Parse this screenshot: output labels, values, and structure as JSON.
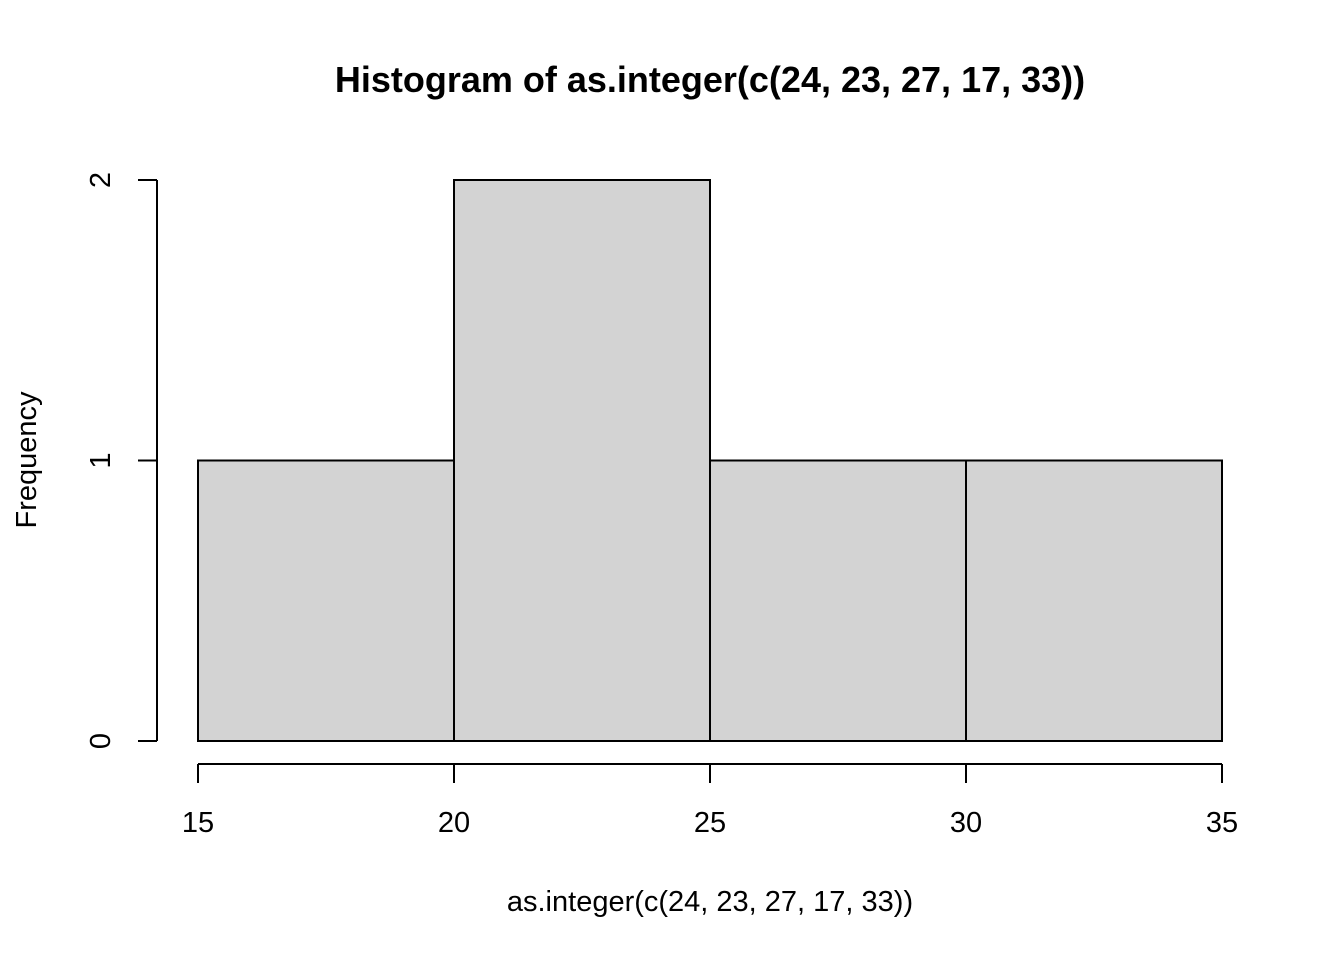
{
  "chart_data": {
    "type": "bar",
    "title": "Histogram of as.integer(c(24, 23, 27, 17, 33))",
    "xlabel": "as.integer(c(24, 23, 27, 17, 33))",
    "ylabel": "Frequency",
    "bins": [
      {
        "from": 15,
        "to": 20,
        "count": 1
      },
      {
        "from": 20,
        "to": 25,
        "count": 2
      },
      {
        "from": 25,
        "to": 30,
        "count": 1
      },
      {
        "from": 30,
        "to": 35,
        "count": 1
      }
    ],
    "xlim": [
      15,
      35
    ],
    "ylim": [
      0,
      2
    ],
    "x_ticks": [
      15,
      20,
      25,
      30,
      35
    ],
    "y_ticks": [
      0,
      1,
      2
    ],
    "bar_color": "#d3d3d3",
    "grid": false,
    "legend": "none"
  }
}
